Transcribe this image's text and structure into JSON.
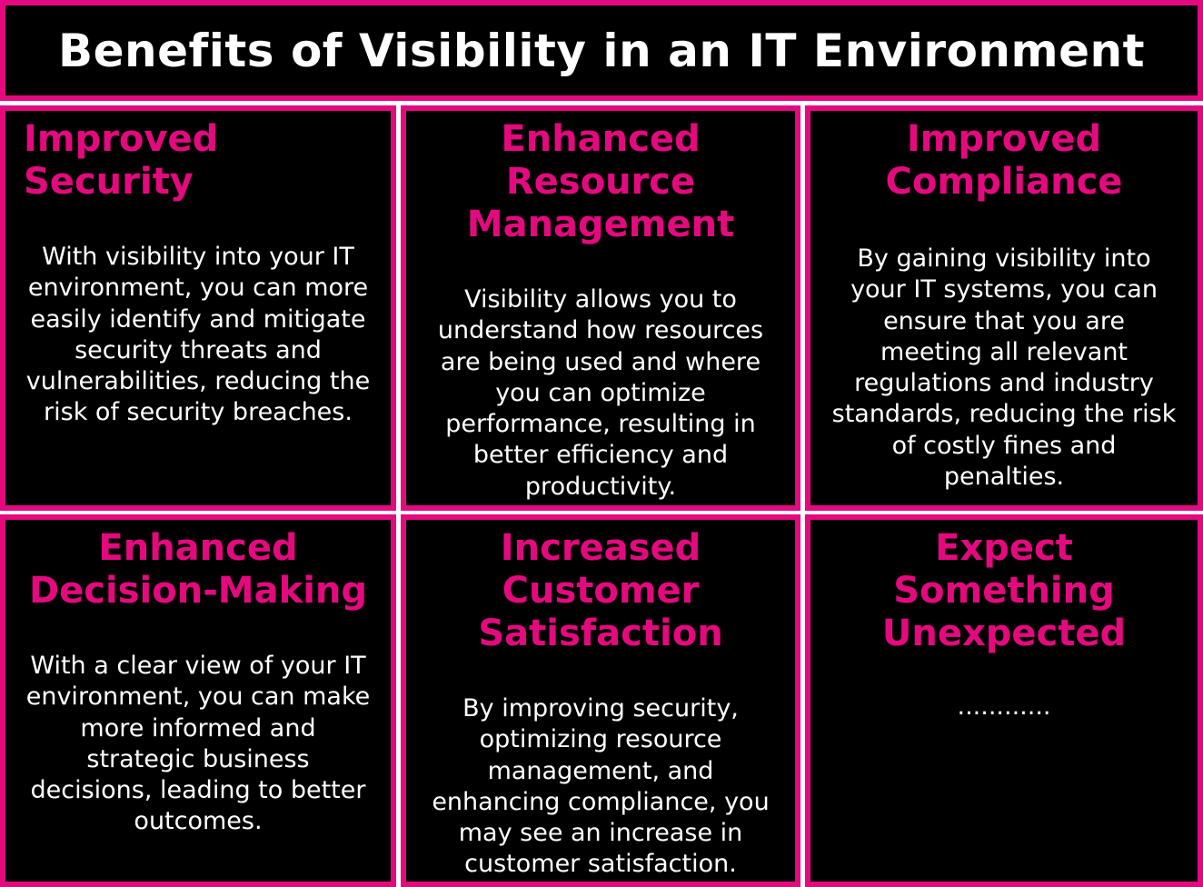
{
  "title": "Benefits of Visibility in an IT Environment",
  "colors": {
    "accent": "#e5097f",
    "background": "#000000",
    "text": "#ffffff"
  },
  "cards": [
    {
      "heading": "Improved Security",
      "body": "With visibility into your IT\nenvironment, you can more\neasily identify and mitigate\nsecurity threats and\nvulnerabilities, reducing the\nrisk of security breaches."
    },
    {
      "heading": "Enhanced\nResource\nManagement",
      "body": "Visibility allows you to\nunderstand how resources\nare being used and where\nyou can optimize\nperformance, resulting in\nbetter efficiency and\nproductivity."
    },
    {
      "heading": "Improved\nCompliance",
      "body": "By gaining visibility into\nyour IT systems, you can\nensure that you are\nmeeting all relevant\nregulations and industry\nstandards, reducing the risk\nof costly fines and\npenalties."
    },
    {
      "heading": "Enhanced\nDecision-Making",
      "body": "With a clear view of your IT\nenvironment, you can make\nmore informed and\nstrategic business\ndecisions, leading to better\noutcomes."
    },
    {
      "heading": "Increased\nCustomer\nSatisfaction",
      "body": "By improving security,\noptimizing resource\nmanagement, and\nenhancing compliance, you\nmay see an increase in\ncustomer satisfaction."
    },
    {
      "heading": "Expect Something\nUnexpected",
      "body": "............"
    }
  ]
}
